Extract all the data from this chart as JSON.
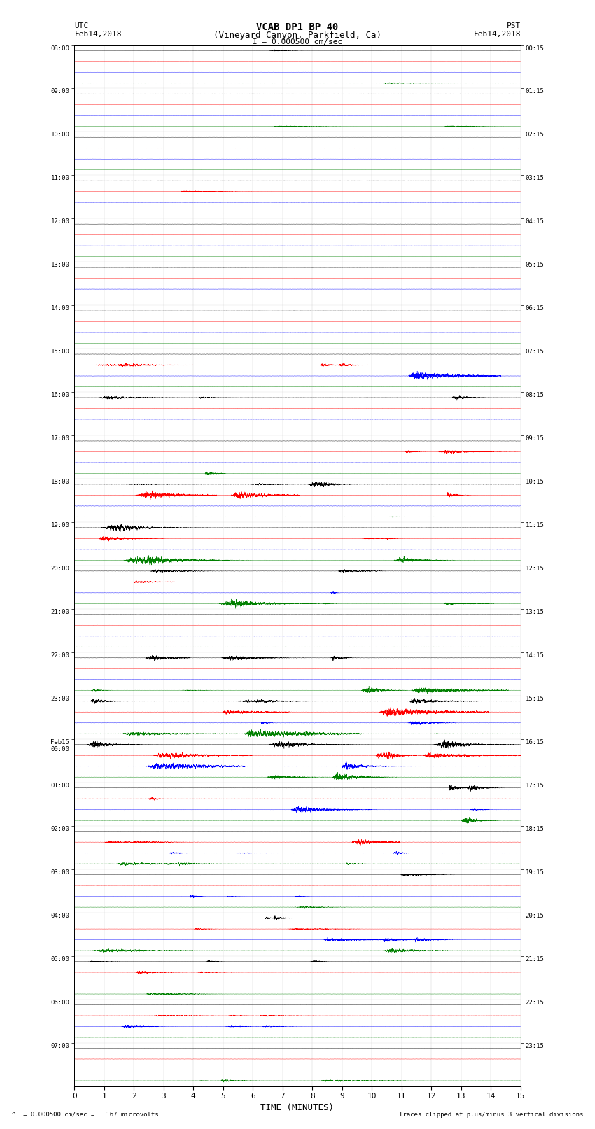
{
  "title_line1": "VCAB DP1 BP 40",
  "title_line2": "(Vineyard Canyon, Parkfield, Ca)",
  "scale_text": "I = 0.000500 cm/sec",
  "utc_label": "UTC",
  "utc_date": "Feb14,2018",
  "pst_label": "PST",
  "pst_date": "Feb14,2018",
  "xlabel": "TIME (MINUTES)",
  "footer_left": "= 0.000500 cm/sec =   167 microvolts",
  "footer_right": "Traces clipped at plus/minus 3 vertical divisions",
  "x_min": 0,
  "x_max": 15,
  "x_ticks": [
    0,
    1,
    2,
    3,
    4,
    5,
    6,
    7,
    8,
    9,
    10,
    11,
    12,
    13,
    14,
    15
  ],
  "trace_colors": [
    "black",
    "red",
    "blue",
    "green"
  ],
  "num_rows": 96,
  "background_color": "white",
  "trace_linewidth": 0.3,
  "event_seed": 12345
}
